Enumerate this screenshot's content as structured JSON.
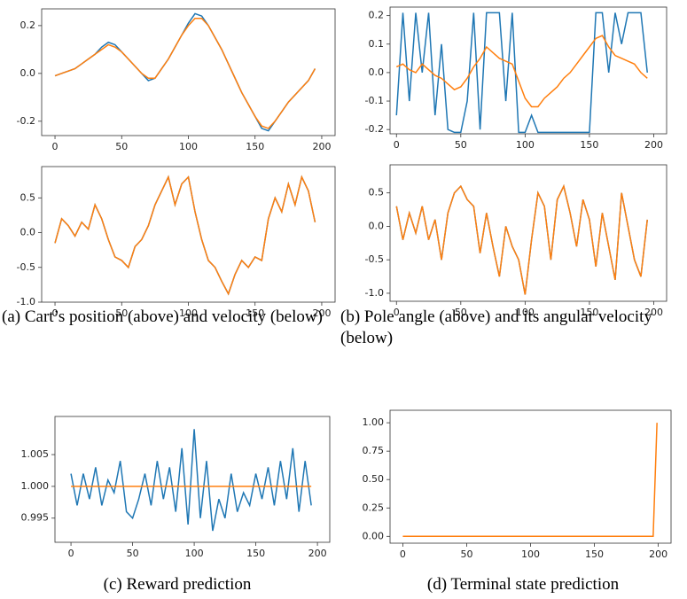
{
  "chart_data": [
    {
      "type": "line",
      "x": [
        0,
        5,
        10,
        15,
        20,
        25,
        30,
        35,
        40,
        45,
        50,
        55,
        60,
        65,
        70,
        75,
        80,
        85,
        90,
        95,
        100,
        105,
        110,
        115,
        120,
        125,
        130,
        135,
        140,
        145,
        150,
        155,
        160,
        165,
        170,
        175,
        180,
        185,
        190,
        195
      ],
      "series": [
        {
          "color": "#1f77b4",
          "values": [
            -0.01,
            0.0,
            0.01,
            0.02,
            0.04,
            0.06,
            0.08,
            0.11,
            0.13,
            0.12,
            0.09,
            0.06,
            0.03,
            0.0,
            -0.03,
            -0.02,
            0.02,
            0.06,
            0.11,
            0.16,
            0.21,
            0.25,
            0.24,
            0.2,
            0.15,
            0.1,
            0.04,
            -0.02,
            -0.08,
            -0.13,
            -0.18,
            -0.23,
            -0.24,
            -0.2,
            -0.16,
            -0.12,
            -0.09,
            -0.06,
            -0.03,
            0.02
          ]
        },
        {
          "color": "#ff7f0e",
          "values": [
            -0.01,
            0.0,
            0.01,
            0.02,
            0.04,
            0.06,
            0.08,
            0.1,
            0.12,
            0.11,
            0.09,
            0.06,
            0.03,
            0.0,
            -0.02,
            -0.02,
            0.02,
            0.06,
            0.11,
            0.16,
            0.2,
            0.23,
            0.23,
            0.2,
            0.15,
            0.1,
            0.04,
            -0.02,
            -0.08,
            -0.13,
            -0.18,
            -0.22,
            -0.23,
            -0.2,
            -0.16,
            -0.12,
            -0.09,
            -0.06,
            -0.03,
            0.02
          ]
        }
      ],
      "xlim": [
        -10,
        210
      ],
      "xticks": [
        0,
        50,
        100,
        150,
        200
      ],
      "ylim": [
        -0.26,
        0.27
      ],
      "yticks": [
        0.2,
        {
          "value": 0,
          "label": "0.0"
        },
        -0.2
      ]
    },
    {
      "type": "line",
      "x": [
        0,
        5,
        10,
        15,
        20,
        25,
        30,
        35,
        40,
        45,
        50,
        55,
        60,
        65,
        70,
        75,
        80,
        85,
        90,
        95,
        100,
        105,
        110,
        115,
        120,
        125,
        130,
        135,
        140,
        145,
        150,
        155,
        160,
        165,
        170,
        175,
        180,
        185,
        190,
        195
      ],
      "series": [
        {
          "color": "#1f77b4",
          "values": [
            -0.15,
            0.21,
            -0.1,
            0.21,
            0.0,
            0.21,
            -0.15,
            0.1,
            -0.2,
            -0.21,
            -0.21,
            -0.1,
            0.21,
            -0.2,
            0.21,
            0.21,
            0.21,
            -0.1,
            0.21,
            -0.21,
            -0.21,
            -0.15,
            -0.21,
            -0.21,
            -0.21,
            -0.21,
            -0.21,
            -0.21,
            -0.21,
            -0.21,
            -0.21,
            0.21,
            0.21,
            0.0,
            0.21,
            0.1,
            0.21,
            0.21,
            0.21,
            0.0
          ]
        },
        {
          "color": "#ff7f0e",
          "values": [
            0.02,
            0.03,
            0.01,
            0.0,
            0.03,
            0.01,
            -0.01,
            -0.02,
            -0.04,
            -0.06,
            -0.05,
            -0.02,
            0.02,
            0.05,
            0.09,
            0.07,
            0.05,
            0.04,
            0.03,
            -0.03,
            -0.09,
            -0.12,
            -0.12,
            -0.09,
            -0.07,
            -0.05,
            -0.02,
            0.0,
            0.03,
            0.06,
            0.09,
            0.12,
            0.13,
            0.09,
            0.06,
            0.05,
            0.04,
            0.03,
            0.0,
            -0.02
          ]
        }
      ],
      "xlim": [
        -5,
        210
      ],
      "xticks": [
        0,
        50,
        100,
        150,
        200
      ],
      "ylim": [
        -0.215,
        0.23
      ],
      "yticks": [
        0.2,
        0.1,
        {
          "value": 0,
          "label": "0.0"
        },
        -0.1,
        -0.2
      ]
    },
    {
      "type": "line",
      "x": [
        0,
        5,
        10,
        15,
        20,
        25,
        30,
        35,
        40,
        45,
        50,
        55,
        60,
        65,
        70,
        75,
        80,
        85,
        90,
        95,
        100,
        105,
        110,
        115,
        120,
        125,
        130,
        135,
        140,
        145,
        150,
        155,
        160,
        165,
        170,
        175,
        180,
        185,
        190,
        195
      ],
      "series": [
        {
          "color": "#1f77b4",
          "values": [
            -0.15,
            0.2,
            0.1,
            -0.05,
            0.15,
            0.05,
            0.4,
            0.2,
            -0.1,
            -0.35,
            -0.4,
            -0.5,
            -0.2,
            -0.1,
            0.1,
            0.4,
            0.6,
            0.8,
            0.4,
            0.7,
            0.8,
            0.3,
            -0.1,
            -0.4,
            -0.5,
            -0.7,
            -0.88,
            -0.6,
            -0.4,
            -0.5,
            -0.35,
            -0.4,
            0.2,
            0.5,
            0.3,
            0.7,
            0.4,
            0.8,
            0.6,
            0.15
          ]
        },
        {
          "color": "#ff7f0e",
          "values": [
            -0.15,
            0.2,
            0.1,
            -0.05,
            0.15,
            0.05,
            0.4,
            0.2,
            -0.1,
            -0.35,
            -0.4,
            -0.5,
            -0.2,
            -0.1,
            0.1,
            0.4,
            0.6,
            0.8,
            0.4,
            0.7,
            0.8,
            0.3,
            -0.1,
            -0.4,
            -0.5,
            -0.7,
            -0.88,
            -0.6,
            -0.4,
            -0.5,
            -0.35,
            -0.4,
            0.2,
            0.5,
            0.3,
            0.7,
            0.4,
            0.8,
            0.6,
            0.15
          ]
        }
      ],
      "xlim": [
        -10,
        210
      ],
      "xticks": [
        0,
        50,
        100,
        150,
        200
      ],
      "ylim": [
        -1.0,
        0.95
      ],
      "yticks": [
        0.5,
        {
          "value": 0,
          "label": "0.0"
        },
        -0.5,
        {
          "value": -1,
          "label": "-1.0"
        }
      ]
    },
    {
      "type": "line",
      "x": [
        0,
        5,
        10,
        15,
        20,
        25,
        30,
        35,
        40,
        45,
        50,
        55,
        60,
        65,
        70,
        75,
        80,
        85,
        90,
        95,
        100,
        105,
        110,
        115,
        120,
        125,
        130,
        135,
        140,
        145,
        150,
        155,
        160,
        165,
        170,
        175,
        180,
        185,
        190,
        195
      ],
      "series": [
        {
          "color": "#1f77b4",
          "values": [
            0.3,
            -0.2,
            0.2,
            -0.1,
            0.3,
            -0.2,
            0.1,
            -0.5,
            0.2,
            0.5,
            0.6,
            0.4,
            0.3,
            -0.4,
            0.2,
            -0.3,
            -0.75,
            0.0,
            -0.3,
            -0.5,
            -1.02,
            -0.2,
            0.5,
            0.3,
            -0.5,
            0.4,
            0.6,
            0.2,
            -0.3,
            0.4,
            0.1,
            -0.6,
            0.2,
            -0.3,
            -0.8,
            0.5,
            0.0,
            -0.5,
            -0.75,
            0.1
          ]
        },
        {
          "color": "#ff7f0e",
          "values": [
            0.3,
            -0.2,
            0.2,
            -0.1,
            0.3,
            -0.2,
            0.1,
            -0.5,
            0.2,
            0.5,
            0.6,
            0.4,
            0.3,
            -0.4,
            0.2,
            -0.3,
            -0.75,
            0.0,
            -0.3,
            -0.5,
            -1.02,
            -0.2,
            0.5,
            0.3,
            -0.5,
            0.4,
            0.6,
            0.2,
            -0.3,
            0.4,
            0.1,
            -0.6,
            0.2,
            -0.3,
            -0.8,
            0.5,
            0.0,
            -0.5,
            -0.75,
            0.1
          ]
        }
      ],
      "xlim": [
        -5,
        210
      ],
      "xticks": [
        0,
        50,
        100,
        150,
        200
      ],
      "ylim": [
        -1.12,
        0.92
      ],
      "yticks": [
        0.5,
        {
          "value": 0,
          "label": "0.0"
        },
        -0.5,
        {
          "value": -1,
          "label": "-1.0"
        }
      ]
    },
    {
      "type": "line",
      "x": [
        0,
        5,
        10,
        15,
        20,
        25,
        30,
        35,
        40,
        45,
        50,
        55,
        60,
        65,
        70,
        75,
        80,
        85,
        90,
        95,
        100,
        105,
        110,
        115,
        120,
        125,
        130,
        135,
        140,
        145,
        150,
        155,
        160,
        165,
        170,
        175,
        180,
        185,
        190,
        195
      ],
      "series": [
        {
          "color": "#1f77b4",
          "values": [
            1.002,
            0.997,
            1.002,
            0.998,
            1.003,
            0.997,
            1.001,
            0.999,
            1.004,
            0.996,
            0.995,
            0.998,
            1.002,
            0.997,
            1.004,
            0.998,
            1.003,
            0.996,
            1.006,
            0.994,
            1.009,
            0.995,
            1.004,
            0.993,
            0.998,
            0.995,
            1.002,
            0.996,
            0.999,
            0.997,
            1.002,
            0.998,
            1.003,
            0.997,
            1.004,
            0.998,
            1.006,
            0.996,
            1.004,
            0.997
          ]
        },
        {
          "color": "#ff7f0e",
          "values": [
            1,
            1,
            1,
            1,
            1,
            1,
            1,
            1,
            1,
            1,
            1,
            1,
            1,
            1,
            1,
            1,
            1,
            1,
            1,
            1,
            1,
            1,
            1,
            1,
            1,
            1,
            1,
            1,
            1,
            1,
            1,
            1,
            1,
            1,
            1,
            1,
            1,
            1,
            1,
            1
          ]
        }
      ],
      "xlim": [
        -13,
        210
      ],
      "xticks": [
        0,
        50,
        100,
        150,
        200
      ],
      "ylim": [
        0.9912,
        1.011
      ],
      "yticks": [
        1.005,
        {
          "value": 1,
          "label": "1.000"
        },
        0.995
      ]
    },
    {
      "type": "line",
      "x": [
        0,
        50,
        100,
        150,
        196,
        199
      ],
      "series": [
        {
          "color": "#ff7f0e",
          "values": [
            0,
            0,
            0,
            0,
            0,
            1
          ]
        }
      ],
      "xlim": [
        -10,
        210
      ],
      "xticks": [
        0,
        50,
        100,
        150,
        200
      ],
      "ylim": [
        -0.06,
        1.11
      ],
      "yticks": [
        {
          "value": 1,
          "label": "1.00"
        },
        {
          "value": 0.75,
          "label": "0.75"
        },
        {
          "value": 0.5,
          "label": "0.50"
        },
        {
          "value": 0.25,
          "label": "0.25"
        },
        {
          "value": 0,
          "label": "0.00"
        }
      ]
    }
  ],
  "captions": [
    "(a) Cart’s position (above) and velocity (below)",
    "(b) Pole angle (above) and its angular velocity (below)",
    "(c) Reward prediction",
    "(d) Terminal state prediction"
  ]
}
